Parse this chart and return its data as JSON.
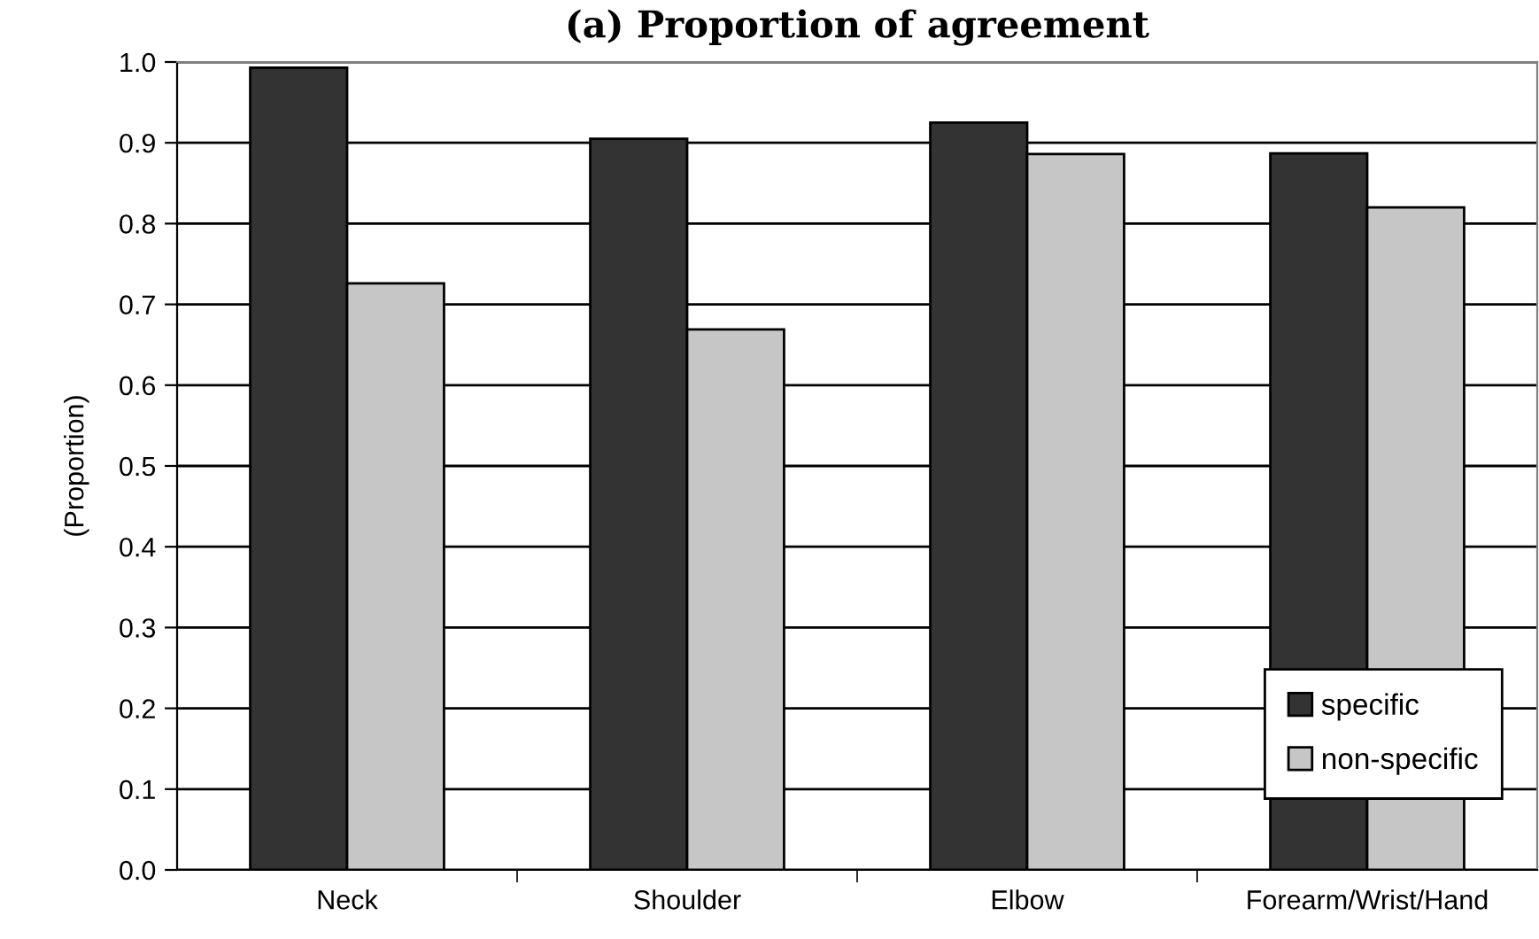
{
  "chart_data": {
    "type": "bar",
    "title": "(a) Proportion of agreement",
    "ylabel": "(Proportion)",
    "categories": [
      "Neck",
      "Shoulder",
      "Elbow",
      "Forearm/Wrist/Hand"
    ],
    "series": [
      {
        "name": "specific",
        "color": "#333333",
        "values": [
          0.993,
          0.905,
          0.925,
          0.887
        ]
      },
      {
        "name": "non-specific",
        "color": "#c6c6c6",
        "values": [
          0.726,
          0.669,
          0.886,
          0.82
        ]
      }
    ],
    "ylim": [
      0,
      1
    ],
    "yticks": [
      "0.0",
      0.1,
      0.2,
      0.3,
      0.4,
      0.5,
      0.6,
      0.7,
      0.8,
      0.9,
      "1.0"
    ],
    "grid": "y",
    "legend": "bottom right"
  }
}
